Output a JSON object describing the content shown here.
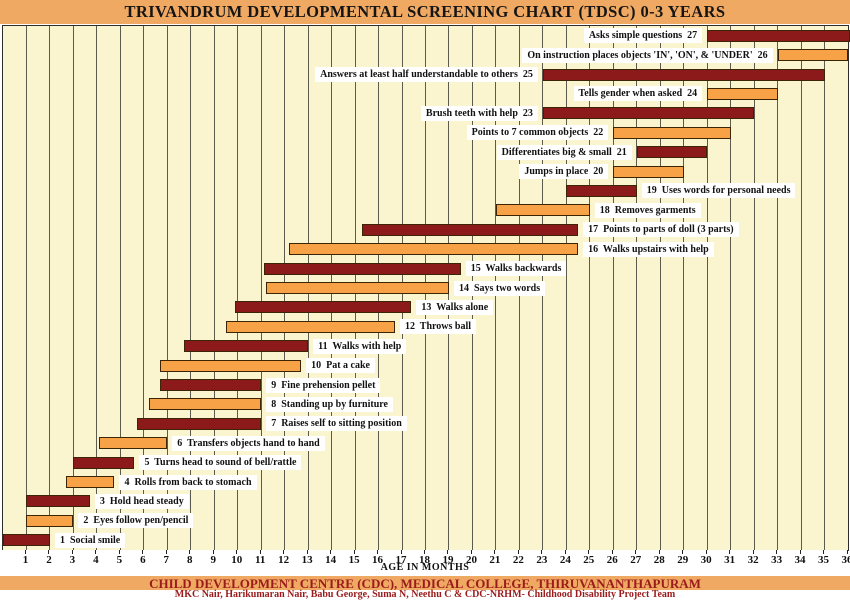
{
  "title": "TRIVANDRUM DEVELOPMENTAL SCREENING CHART (TDSC) 0-3 YEARS",
  "footer": {
    "institution": "CHILD DEVELOPMENT CENTRE (CDC), MEDICAL COLLEGE, THIRUVANANTHAPURAM",
    "authors": "MKC Nair, Harikumaran Nair, Babu George, Suma N, Neethu C & CDC-NRHM- Childhood Disability Project Team"
  },
  "chart_data": {
    "type": "bar",
    "orientation": "horizontal-range",
    "title": "TRIVANDRUM DEVELOPMENTAL SCREENING CHART (TDSC) 0-3 YEARS",
    "xlabel": "AGE IN MONTHS",
    "xlim": [
      0,
      36
    ],
    "x_ticks": [
      1,
      2,
      3,
      4,
      5,
      6,
      7,
      8,
      9,
      10,
      11,
      12,
      13,
      14,
      15,
      16,
      17,
      18,
      19,
      20,
      21,
      22,
      23,
      24,
      25,
      26,
      27,
      28,
      29,
      30,
      31,
      32,
      33,
      34,
      35,
      36
    ],
    "grid": true,
    "colors": {
      "maroon_bar": "#8C1A1A",
      "orange_bar": "#F7A246",
      "plot_background": "#FAF4CF",
      "band_orange": "#F0A963",
      "grid_line": "#5C5C4E",
      "label_background": "#FFFFFF",
      "footer_text_red": "#9A1B1B"
    },
    "milestones": [
      {
        "id": 1,
        "label": "Social smile",
        "start_month": 0,
        "end_month": 2,
        "label_side": "right"
      },
      {
        "id": 2,
        "label": "Eyes follow pen/pencil",
        "start_month": 1,
        "end_month": 3,
        "label_side": "right"
      },
      {
        "id": 3,
        "label": "Hold head steady",
        "start_month": 1,
        "end_month": 3.7,
        "label_side": "right"
      },
      {
        "id": 4,
        "label": "Rolls from back to stomach",
        "start_month": 2.7,
        "end_month": 4.75,
        "label_side": "right"
      },
      {
        "id": 5,
        "label": "Turns head to sound of bell/rattle",
        "start_month": 3,
        "end_month": 5.6,
        "label_side": "right"
      },
      {
        "id": 6,
        "label": "Transfers objects hand to hand",
        "start_month": 4.1,
        "end_month": 7,
        "label_side": "right"
      },
      {
        "id": 7,
        "label": "Raises self to sitting position",
        "start_month": 5.7,
        "end_month": 11,
        "label_side": "right"
      },
      {
        "id": 8,
        "label": "Standing up by furniture",
        "start_month": 6.2,
        "end_month": 11,
        "label_side": "right"
      },
      {
        "id": 9,
        "label": "Fine prehension pellet",
        "start_month": 6.7,
        "end_month": 11,
        "label_side": "right"
      },
      {
        "id": 10,
        "label": "Pat a cake",
        "start_month": 6.7,
        "end_month": 12.7,
        "label_side": "right"
      },
      {
        "id": 11,
        "label": "Walks with help",
        "start_month": 7.7,
        "end_month": 13,
        "label_side": "right"
      },
      {
        "id": 12,
        "label": "Throws ball",
        "start_month": 9.5,
        "end_month": 16.7,
        "label_side": "right"
      },
      {
        "id": 13,
        "label": "Walks alone",
        "start_month": 9.9,
        "end_month": 17.4,
        "label_side": "right"
      },
      {
        "id": 14,
        "label": "Says two words",
        "start_month": 11.2,
        "end_month": 19,
        "label_side": "right"
      },
      {
        "id": 15,
        "label": "Walks backwards",
        "start_month": 11.1,
        "end_month": 19.5,
        "label_side": "right"
      },
      {
        "id": 16,
        "label": "Walks upstairs with help",
        "start_month": 12.2,
        "end_month": 24.5,
        "label_side": "right"
      },
      {
        "id": 17,
        "label": "Points to parts of doll (3 parts)",
        "start_month": 15.3,
        "end_month": 24.5,
        "label_side": "right"
      },
      {
        "id": 18,
        "label": "Removes garments",
        "start_month": 21,
        "end_month": 25,
        "label_side": "right"
      },
      {
        "id": 19,
        "label": "Uses words for personal needs",
        "start_month": 24,
        "end_month": 27,
        "label_side": "right"
      },
      {
        "id": 20,
        "label": "Jumps in place",
        "start_month": 26,
        "end_month": 29,
        "label_side": "left"
      },
      {
        "id": 21,
        "label": "Differentiates big & small",
        "start_month": 27,
        "end_month": 30,
        "label_side": "left"
      },
      {
        "id": 22,
        "label": "Points to 7 common objects",
        "start_month": 26,
        "end_month": 31,
        "label_side": "left"
      },
      {
        "id": 23,
        "label": "Brush teeth with help",
        "start_month": 23,
        "end_month": 32,
        "label_side": "left"
      },
      {
        "id": 24,
        "label": "Tells gender when asked",
        "start_month": 30,
        "end_month": 33,
        "label_side": "left"
      },
      {
        "id": 25,
        "label": "Answers at least half understandable to others",
        "start_month": 23,
        "end_month": 35,
        "label_side": "left"
      },
      {
        "id": 26,
        "label": "On instruction places objects 'IN', 'ON', & 'UNDER'",
        "start_month": 33,
        "end_month": 36,
        "label_side": "left"
      },
      {
        "id": 27,
        "label": "Asks simple questions",
        "start_month": 30,
        "end_month": 36.1,
        "label_side": "left"
      }
    ]
  }
}
